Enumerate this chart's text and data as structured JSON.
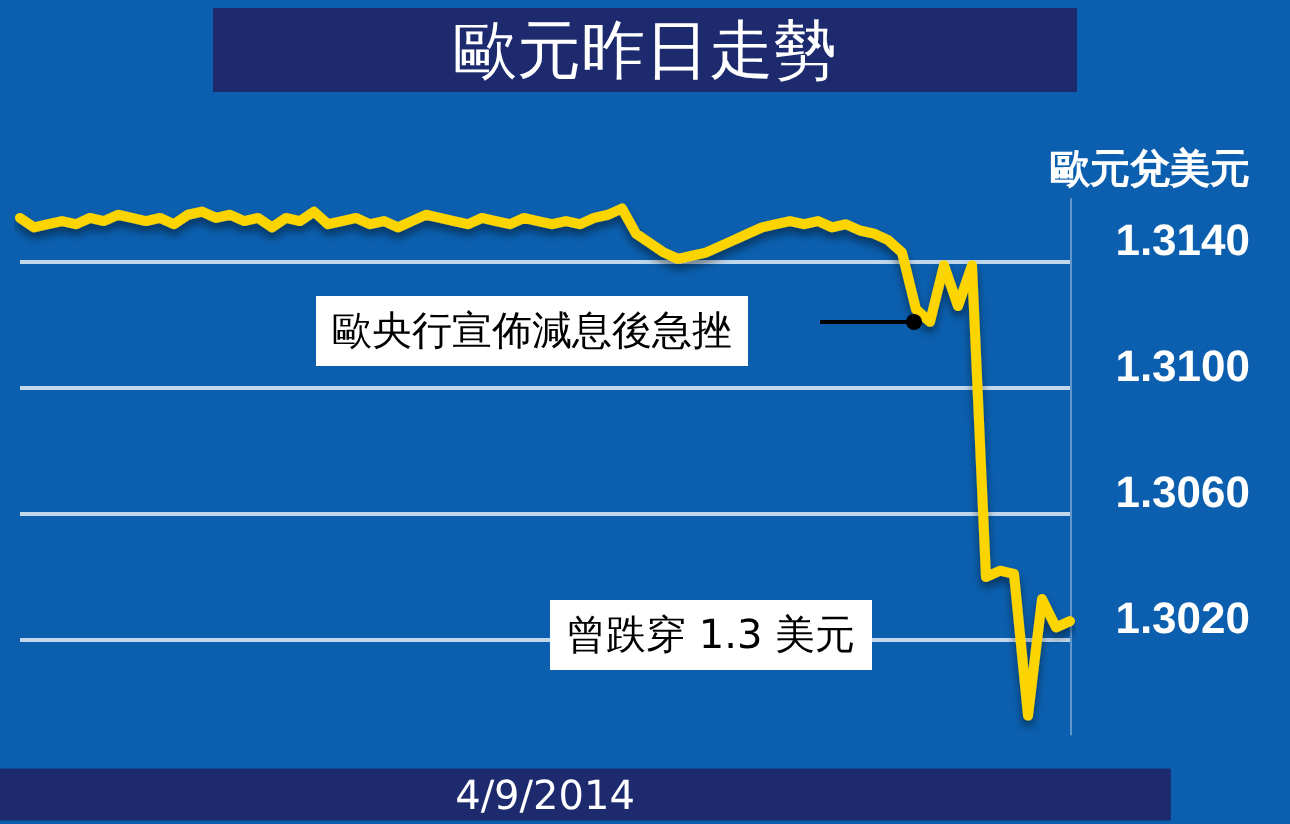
{
  "chart_data": {
    "type": "line",
    "title": "歐元昨日走勢",
    "ylabel": "歐元兌美元",
    "xlabel": "4/9/2014",
    "annotations": [
      "歐央行宣佈減息後急挫",
      "曾跌穿 1.3 美元"
    ],
    "categories": [
      null,
      null,
      null,
      null,
      null,
      null,
      null,
      null,
      null,
      null,
      null,
      null,
      null,
      null,
      null,
      null,
      null,
      null,
      null,
      null,
      null,
      null,
      null,
      null,
      null,
      null,
      null,
      null,
      null,
      null,
      null,
      null,
      null,
      null,
      null,
      null,
      null,
      null,
      null,
      null,
      null,
      null,
      null,
      null,
      null,
      null,
      null,
      null,
      null,
      null,
      null,
      null,
      null,
      null,
      null,
      null,
      null,
      null,
      null,
      null,
      null,
      null,
      null,
      null,
      null,
      null,
      null,
      null,
      null,
      null,
      null,
      null,
      null,
      null,
      null,
      null
    ],
    "series": [
      {
        "color": "#fcd400",
        "values": [
          1.3154,
          1.3151,
          1.3152,
          1.3153,
          1.3152,
          1.3154,
          1.3153,
          1.3155,
          1.3154,
          1.3153,
          1.3154,
          1.3152,
          1.3155,
          1.3156,
          1.3154,
          1.3155,
          1.3153,
          1.3154,
          1.3151,
          1.3154,
          1.3153,
          1.3156,
          1.3152,
          1.3153,
          1.3154,
          1.3152,
          1.3153,
          1.3151,
          1.3153,
          1.3155,
          1.3154,
          1.3153,
          1.3152,
          1.3154,
          1.3153,
          1.3152,
          1.3154,
          1.3153,
          1.3152,
          1.3153,
          1.3152,
          1.3154,
          1.3155,
          1.3157,
          1.3149,
          1.3146,
          1.3143,
          1.3141,
          1.3142,
          1.3143,
          1.3145,
          1.3147,
          1.3149,
          1.3151,
          1.3152,
          1.3153,
          1.3152,
          1.3153,
          1.3151,
          1.3152,
          1.315,
          1.3149,
          1.3147,
          1.3143,
          1.3125,
          1.3121,
          1.3139,
          1.3126,
          1.3139,
          1.304,
          1.3042,
          1.3041,
          1.2996,
          1.3033,
          1.3024,
          1.3026
        ]
      }
    ],
    "ylim": [
      1.299,
      1.316
    ],
    "yticks": [
      {
        "value": 1.302,
        "label": "1.3020"
      },
      {
        "value": 1.306,
        "label": "1.3060"
      },
      {
        "value": 1.31,
        "label": "1.3100"
      },
      {
        "value": 1.314,
        "label": "1.3140"
      }
    ],
    "grid": "y",
    "marker": "none",
    "line_style": "solid"
  }
}
